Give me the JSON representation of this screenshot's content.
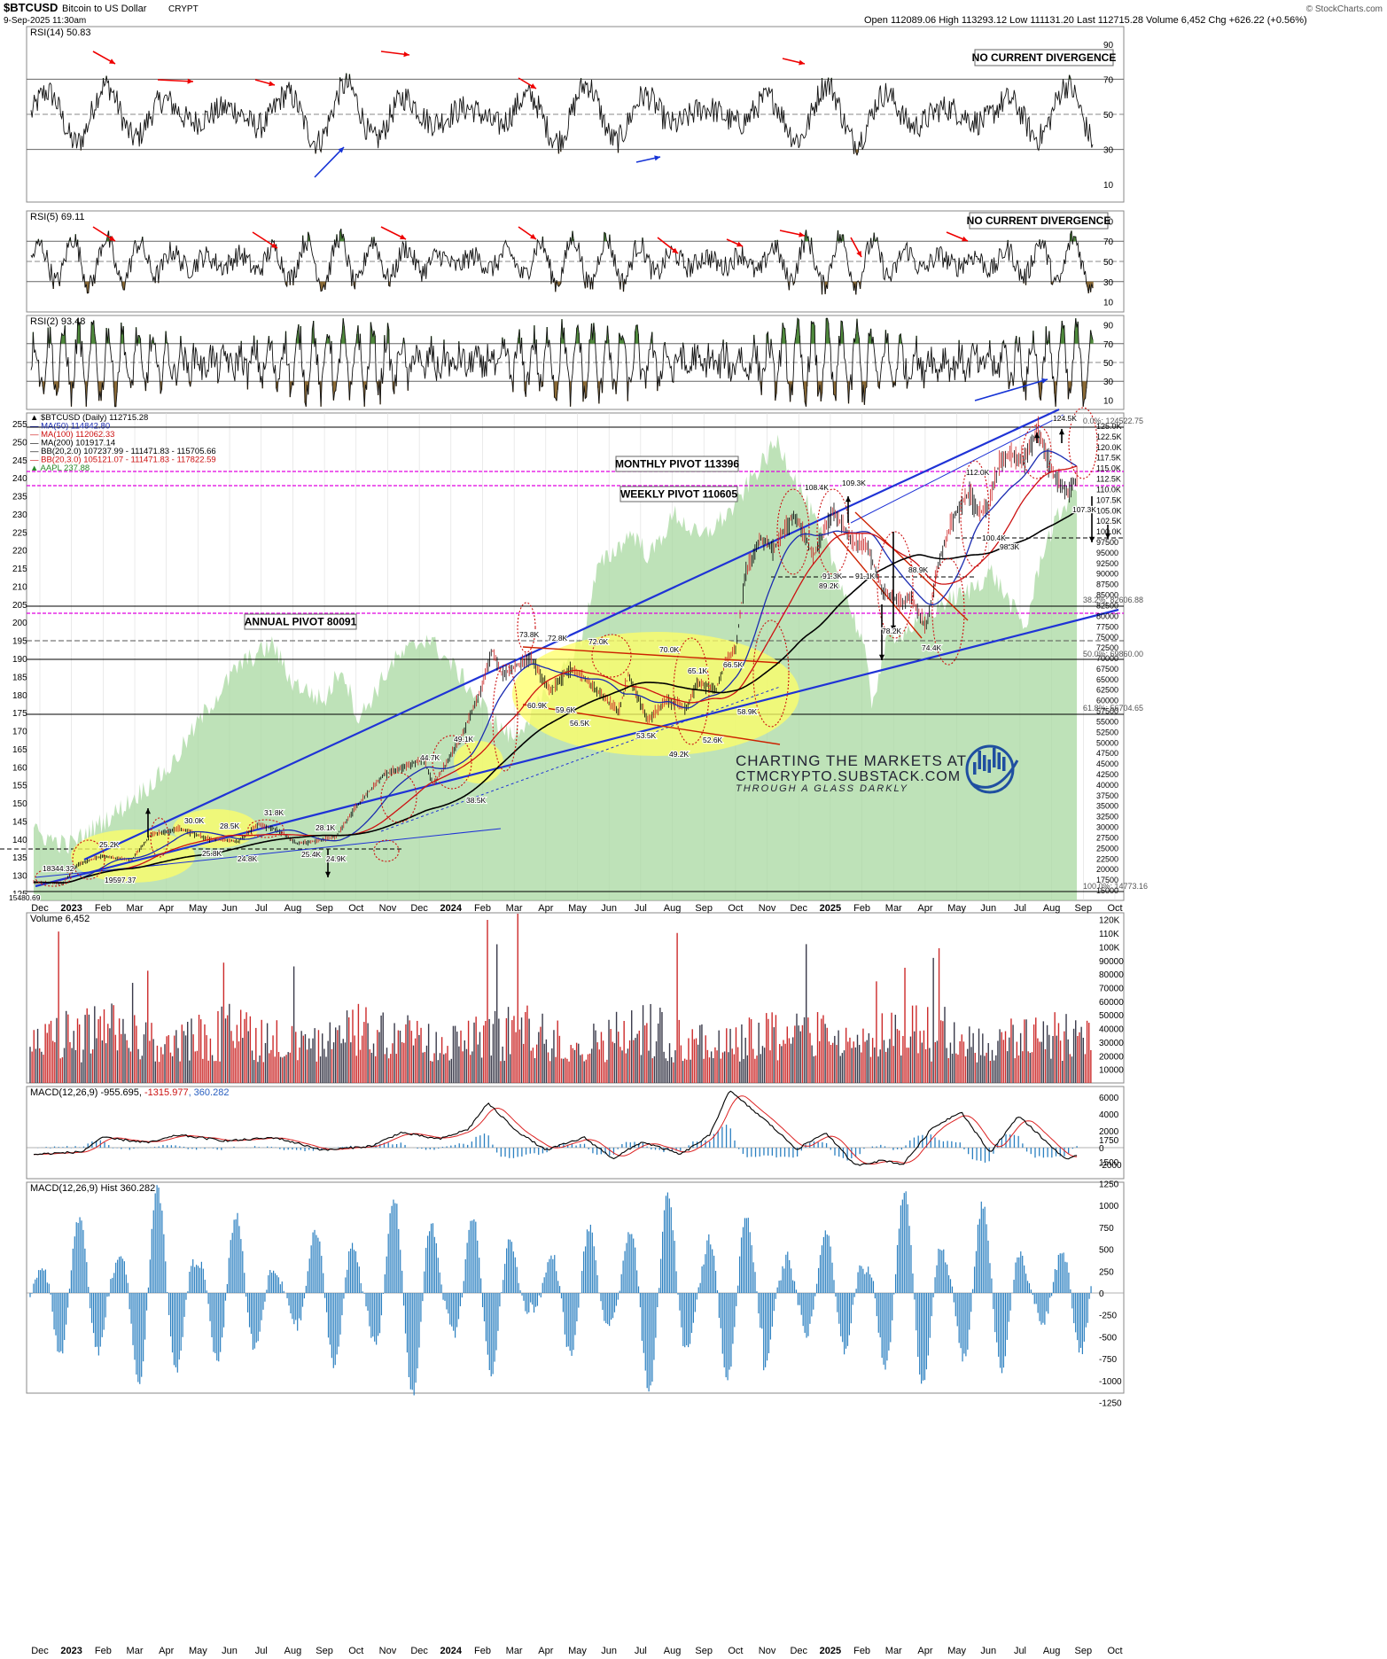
{
  "header": {
    "symbol": "$BTCUSD",
    "name": "Bitcoin to US Dollar",
    "exchange": "CRYPT",
    "datetime": "9-Sep-2025 11:30am",
    "quote": "Open 112089.06   High 113293.12   Low 111131.20   Last 112715.28   Volume 6,452   Chg +626.22 (+0.56%)",
    "watermark": "© StockCharts.com"
  },
  "colors": {
    "green_fill": "#4f8a3c",
    "brown_fill": "#8b6a35",
    "candle_up": "#000000",
    "candle_down": "#cc2222",
    "ma50": "#1a2bb0",
    "ma100": "#cc1111",
    "ma200": "#000000",
    "trendline": "#1f33d6",
    "pivot": "#e000e0",
    "aapl_area": "#a8d8a0",
    "yellow_zone": "#ffff66",
    "macd_hist": "#2a7fc0",
    "vol_up": "#3a3a4a",
    "vol_down": "#cc2a2a"
  },
  "months": [
    "Dec",
    "2023",
    "Feb",
    "Mar",
    "Apr",
    "May",
    "Jun",
    "Jul",
    "Aug",
    "Sep",
    "Oct",
    "Nov",
    "Dec",
    "2024",
    "Feb",
    "Mar",
    "Apr",
    "May",
    "Jun",
    "Jul",
    "Aug",
    "Sep",
    "Oct",
    "Nov",
    "Dec",
    "2025",
    "Feb",
    "Mar",
    "Apr",
    "May",
    "Jun",
    "Jul",
    "Aug",
    "Sep",
    "Oct"
  ],
  "panels": {
    "rsi14": {
      "label": "RSI(14) 50.83",
      "ticks": [
        "90",
        "70",
        "50",
        "30",
        "10"
      ],
      "note": "NO CURRENT DIVERGENCE"
    },
    "rsi5": {
      "label": "RSI(5) 69.11",
      "ticks": [
        "90",
        "70",
        "50",
        "30",
        "10"
      ],
      "note": "NO CURRENT DIVERGENCE"
    },
    "rsi2": {
      "label": "RSI(2) 93.48",
      "ticks": [
        "90",
        "70",
        "50",
        "30",
        "10"
      ]
    },
    "price": {
      "legend": [
        "▲ $BTCUSD (Daily) 112715.28",
        "— MA(50) 114842.80",
        "— MA(100) 112062.33",
        "— MA(200) 101917.14",
        "— BB(20,2.0) 107237.99 - 111471.83 - 115705.66",
        "— BB(20,3.0) 105121.07 - 111471.83 - 117822.59",
        "▲ AAPL 237.88"
      ],
      "left_ticks": [
        "255",
        "250",
        "245",
        "240",
        "235",
        "230",
        "225",
        "220",
        "215",
        "210",
        "205",
        "200",
        "195",
        "190",
        "185",
        "180",
        "175",
        "170",
        "165",
        "160",
        "155",
        "150",
        "145",
        "140",
        "135",
        "130",
        "125"
      ],
      "right_ticks": [
        "125.0K",
        "122.5K",
        "120.0K",
        "117.5K",
        "115.0K",
        "112.5K",
        "110.0K",
        "107.5K",
        "105.0K",
        "102.5K",
        "100.0K",
        "97500",
        "95000",
        "92500",
        "90000",
        "87500",
        "85000",
        "82500",
        "80000",
        "77500",
        "75000",
        "72500",
        "70000",
        "67500",
        "65000",
        "62500",
        "60000",
        "57500",
        "55000",
        "52500",
        "50000",
        "47500",
        "45000",
        "42500",
        "40000",
        "37500",
        "35000",
        "32500",
        "30000",
        "27500",
        "25000",
        "22500",
        "20000",
        "17500",
        "15000"
      ],
      "monthly_pivot": "MONTHLY PIVOT 113396",
      "weekly_pivot": "WEEKLY PIVOT 110605",
      "annual_pivot": "ANNUAL PIVOT 80091",
      "fib_labels": [
        "0.0%: 124522.75",
        "38.2%: 82606.88",
        "50.0%: 69860.00",
        "61.8%: 56704.65",
        "100.0%: 14773.16"
      ],
      "price_labels": [
        {
          "t": "15480.69"
        },
        {
          "t": "18344.32"
        },
        {
          "t": "19597.37"
        },
        {
          "t": "25.2K"
        },
        {
          "t": "30.0K"
        },
        {
          "t": "28.5K"
        },
        {
          "t": "25.8K"
        },
        {
          "t": "24.8K"
        },
        {
          "t": "31.8K"
        },
        {
          "t": "28.1K"
        },
        {
          "t": "25.4K"
        },
        {
          "t": "24.9K"
        },
        {
          "t": "44.7K"
        },
        {
          "t": "49.1K"
        },
        {
          "t": "38.5K"
        },
        {
          "t": "73.8K"
        },
        {
          "t": "72.8K"
        },
        {
          "t": "72.0K"
        },
        {
          "t": "70.0K"
        },
        {
          "t": "66.5K"
        },
        {
          "t": "65.1K"
        },
        {
          "t": "59.6K"
        },
        {
          "t": "56.5K"
        },
        {
          "t": "53.5K"
        },
        {
          "t": "52.6K"
        },
        {
          "t": "49.2K"
        },
        {
          "t": "58.9K"
        },
        {
          "t": "60.9K"
        },
        {
          "t": "108.4K"
        },
        {
          "t": "109.3K"
        },
        {
          "t": "91.3K"
        },
        {
          "t": "89.2K"
        },
        {
          "t": "91.1K"
        },
        {
          "t": "88.9K"
        },
        {
          "t": "78.2K"
        },
        {
          "t": "74.4K"
        },
        {
          "t": "112.0K"
        },
        {
          "t": "100.4K"
        },
        {
          "t": "98.3K"
        },
        {
          "t": "124.5K"
        },
        {
          "t": "107.3K"
        }
      ],
      "branding": [
        "CHARTING THE MARKETS AT",
        "CTMCRYPTO.SUBSTACK.COM",
        "THROUGH A GLASS DARKLY"
      ]
    },
    "volume": {
      "label": "Volume 6,452",
      "ticks": [
        "120K",
        "110K",
        "100K",
        "90000",
        "80000",
        "70000",
        "60000",
        "50000",
        "40000",
        "30000",
        "20000",
        "10000"
      ]
    },
    "macd": {
      "label": "MACD(12,26,9) -955.695, -1315.977, 360.282",
      "label_parts": [
        "MACD(12,26,9) -955.695, ",
        "-1315.977",
        ", 360.282"
      ],
      "ticks": [
        "6000",
        "4000",
        "2000",
        "0",
        "-2000"
      ]
    },
    "hist": {
      "label": "MACD(12,26,9) Hist 360.282",
      "ticks": [
        "1750",
        "1500",
        "1250",
        "1000",
        "750",
        "500",
        "250",
        "0",
        "-250",
        "-500",
        "-750",
        "-1000",
        "-1250"
      ]
    }
  },
  "chart_data": {
    "type": "line",
    "title": "$BTCUSD Bitcoin to US Dollar (Daily)",
    "x_range": [
      "2022-12",
      "2025-09-09"
    ],
    "y_range_usd": [
      14773.16,
      124522.75
    ],
    "y_range_aapl": [
      125,
      255
    ],
    "key_points": [
      {
        "date": "2022-12",
        "low": 15480.69
      },
      {
        "date": "2023-01",
        "value": 18344.32
      },
      {
        "date": "2023-03",
        "value": 19597.37
      },
      {
        "date": "2023-04",
        "value": 30000
      },
      {
        "date": "2023-07",
        "value": 31800
      },
      {
        "date": "2023-09",
        "value": 24900
      },
      {
        "date": "2023-12",
        "value": 44700
      },
      {
        "date": "2024-01",
        "value": 49100
      },
      {
        "date": "2024-01",
        "value": 38500
      },
      {
        "date": "2024-03",
        "value": 73800
      },
      {
        "date": "2024-08",
        "value": 49200
      },
      {
        "date": "2024-12",
        "value": 108400
      },
      {
        "date": "2025-01",
        "value": 109300
      },
      {
        "date": "2025-04",
        "value": 74400
      },
      {
        "date": "2025-05",
        "value": 112000
      },
      {
        "date": "2025-08",
        "value": 124500
      },
      {
        "date": "2025-09",
        "value": 112715.28
      }
    ],
    "moving_averages": {
      "MA50": 114842.8,
      "MA100": 112062.33,
      "MA200": 101917.14
    },
    "pivots": {
      "monthly": 113396,
      "weekly": 110605,
      "annual": 80091
    },
    "macd": {
      "macd": -955.695,
      "signal": -1315.977,
      "hist": 360.282
    },
    "rsi": {
      "rsi14": 50.83,
      "rsi5": 69.11,
      "rsi2": 93.48
    }
  }
}
